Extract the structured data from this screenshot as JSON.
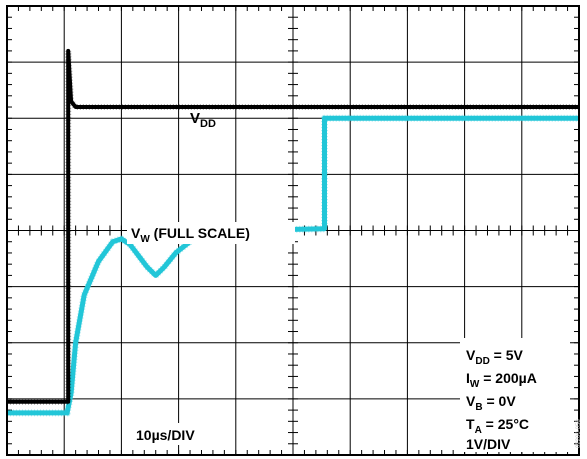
{
  "chart_data": {
    "type": "line",
    "title": "",
    "xlabel": "",
    "ylabel": "",
    "x_divisions": 10,
    "y_divisions": 8,
    "minor_ticks_per_division": 5,
    "timebase_label": "10µs/DIV",
    "grid": true,
    "series": [
      {
        "name_main": "V",
        "name_sub": "DD",
        "color": "#000000",
        "comment": "",
        "points": [
          [
            0.0,
            0.95
          ],
          [
            1.07,
            0.95
          ],
          [
            1.07,
            7.2
          ],
          [
            1.12,
            6.3
          ],
          [
            1.2,
            6.2
          ],
          [
            10.0,
            6.2
          ]
        ]
      },
      {
        "name_main": "V",
        "name_sub": "W",
        "name_suffix": " (FULL SCALE)",
        "color": "#22c6d8",
        "points": [
          [
            0.0,
            0.75
          ],
          [
            1.05,
            0.75
          ],
          [
            1.12,
            1.1
          ],
          [
            1.2,
            2.0
          ],
          [
            1.35,
            2.85
          ],
          [
            1.6,
            3.45
          ],
          [
            1.85,
            3.8
          ],
          [
            2.0,
            3.85
          ],
          [
            2.15,
            3.75
          ],
          [
            2.3,
            3.55
          ],
          [
            2.45,
            3.35
          ],
          [
            2.6,
            3.2
          ],
          [
            2.75,
            3.35
          ],
          [
            2.95,
            3.6
          ],
          [
            3.2,
            3.8
          ],
          [
            3.5,
            3.92
          ],
          [
            4.0,
            4.0
          ],
          [
            5.0,
            4.02
          ],
          [
            5.55,
            4.03
          ],
          [
            5.55,
            6.0
          ],
          [
            10.0,
            6.0
          ]
        ]
      }
    ],
    "conditions": [
      {
        "main": "V",
        "sub": "DD",
        "rest": " = 5V"
      },
      {
        "main": "I",
        "sub": "W",
        "rest": " = 200µA"
      },
      {
        "main": "V",
        "sub": "B",
        "rest": " = 0V"
      },
      {
        "main": "T",
        "sub": "A",
        "rest": " = 25°C"
      },
      {
        "main": "1V/DIV",
        "sub": "",
        "rest": ""
      }
    ]
  },
  "figure_number": "02200-058"
}
